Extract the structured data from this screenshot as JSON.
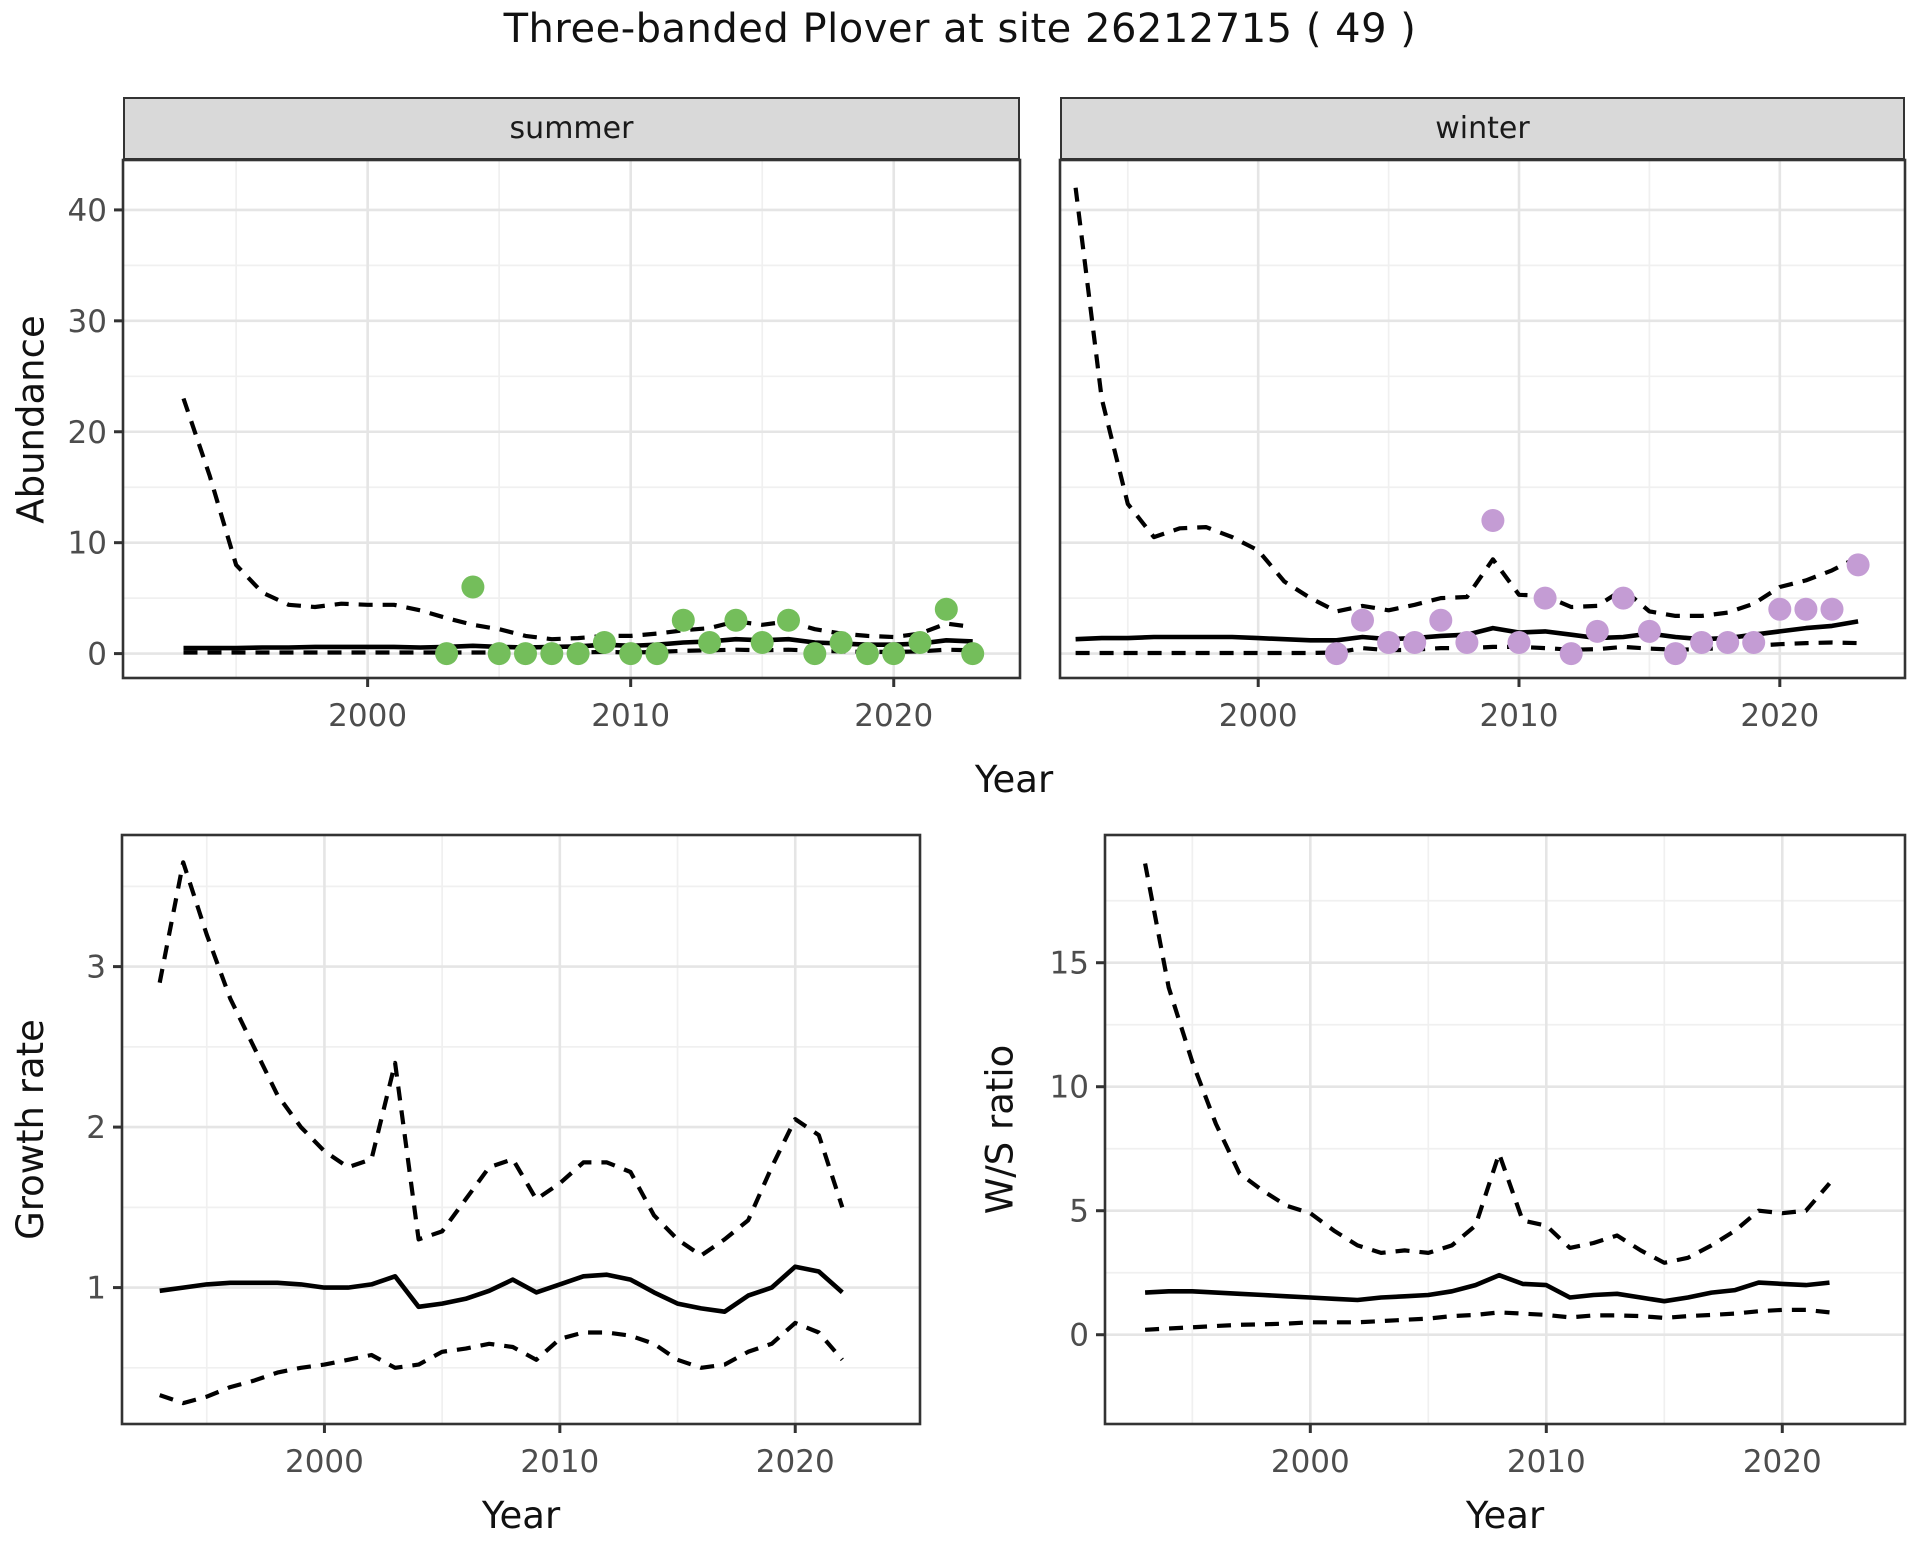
{
  "title": "Three-banded Plover at site 26212715 ( 49 )",
  "colors": {
    "summer_point": "#74be5b",
    "winter_point": "#c49cd4",
    "line": "#000000",
    "grid_major": "#e5e5e5",
    "grid_minor": "#f0f0f0",
    "strip_bg": "#d9d9d9",
    "panel_border": "#333333",
    "tick_text": "#4d4d4d"
  },
  "chart_data": [
    {
      "id": "abundance-summer",
      "type": "line",
      "facet": "summer",
      "xlabel": "Year",
      "ylabel": "Abundance",
      "x_start": 1993,
      "xlim": [
        1990.7,
        2024.8
      ],
      "ylim": [
        -2.2,
        44.5
      ],
      "x_ticks": [
        2000,
        2010,
        2020
      ],
      "x_minor": [
        1995,
        2005,
        2015
      ],
      "y_ticks": [
        0,
        10,
        20,
        30,
        40
      ],
      "y_minor": [
        5,
        15,
        25,
        35
      ],
      "show_y_labels": true,
      "grid": true,
      "legend": "none",
      "series": [
        {
          "name": "upper-ci",
          "style": "dashed",
          "values": [
            23,
            16,
            8,
            5.5,
            4.4,
            4.2,
            4.5,
            4.4,
            4.4,
            3.9,
            3.2,
            2.6,
            2.2,
            1.6,
            1.3,
            1.4,
            1.6,
            1.6,
            1.8,
            2.1,
            2.3,
            2.9,
            2.6,
            2.9,
            2.2,
            1.8,
            1.6,
            1.5,
            1.8,
            2.7,
            2.4
          ]
        },
        {
          "name": "mean",
          "style": "solid",
          "values": [
            0.5,
            0.5,
            0.5,
            0.55,
            0.55,
            0.6,
            0.6,
            0.6,
            0.6,
            0.55,
            0.6,
            0.7,
            0.6,
            0.55,
            0.6,
            0.65,
            0.8,
            0.7,
            0.8,
            1.0,
            1.1,
            1.3,
            1.2,
            1.3,
            1.0,
            0.9,
            0.8,
            0.8,
            0.9,
            1.2,
            1.1
          ]
        },
        {
          "name": "lower-ci",
          "style": "dashed",
          "values": [
            0.1,
            0.1,
            0.1,
            0.1,
            0.1,
            0.1,
            0.1,
            0.1,
            0.1,
            0.1,
            0.1,
            0.1,
            0.1,
            0.1,
            0.1,
            0.1,
            0.15,
            0.1,
            0.15,
            0.25,
            0.3,
            0.35,
            0.3,
            0.35,
            0.25,
            0.2,
            0.15,
            0.15,
            0.2,
            0.35,
            0.3
          ]
        }
      ],
      "points": {
        "x_start": 2003,
        "color_key": "summer_point",
        "values": [
          0,
          6,
          0,
          0,
          0,
          0,
          1,
          0,
          0,
          3,
          1,
          3,
          1,
          3,
          0,
          1,
          0,
          0,
          1,
          4,
          0
        ]
      }
    },
    {
      "id": "abundance-winter",
      "type": "line",
      "facet": "winter",
      "xlabel": "Year",
      "ylabel": "Abundance",
      "x_start": 1993,
      "xlim": [
        1992.4,
        2024.8
      ],
      "ylim": [
        -2.2,
        44.5
      ],
      "x_ticks": [
        2000,
        2010,
        2020
      ],
      "x_minor": [
        1995,
        2005,
        2015
      ],
      "y_ticks": [
        0,
        10,
        20,
        30,
        40
      ],
      "y_minor": [
        5,
        15,
        25,
        35
      ],
      "show_y_labels": false,
      "grid": true,
      "legend": "none",
      "series": [
        {
          "name": "upper-ci",
          "style": "dashed",
          "values": [
            42,
            23,
            13.5,
            10.5,
            11.3,
            11.4,
            10.5,
            9.3,
            6.5,
            5.0,
            3.8,
            4.3,
            3.9,
            4.4,
            5.0,
            5.1,
            8.5,
            5.3,
            5.2,
            4.2,
            4.3,
            5.8,
            3.8,
            3.4,
            3.4,
            3.7,
            4.5,
            6.0,
            6.6,
            7.5,
            8.7
          ]
        },
        {
          "name": "mean",
          "style": "solid",
          "values": [
            1.3,
            1.4,
            1.4,
            1.5,
            1.5,
            1.5,
            1.5,
            1.4,
            1.3,
            1.2,
            1.2,
            1.5,
            1.3,
            1.4,
            1.6,
            1.7,
            2.3,
            1.9,
            2.0,
            1.7,
            1.4,
            1.5,
            1.8,
            1.5,
            1.3,
            1.4,
            1.7,
            2.0,
            2.3,
            2.5,
            2.9
          ]
        },
        {
          "name": "lower-ci",
          "style": "dashed",
          "values": [
            0.05,
            0.05,
            0.05,
            0.05,
            0.05,
            0.05,
            0.05,
            0.05,
            0.05,
            0.05,
            0.1,
            0.5,
            0.3,
            0.35,
            0.5,
            0.5,
            0.6,
            0.6,
            0.5,
            0.35,
            0.4,
            0.6,
            0.45,
            0.35,
            0.4,
            0.55,
            0.7,
            0.85,
            0.95,
            1.0,
            0.95
          ]
        }
      ],
      "points": {
        "x_start": 2003,
        "color_key": "winter_point",
        "values": [
          0,
          3,
          1,
          1,
          3,
          1,
          12,
          1,
          5,
          0,
          2,
          5,
          2,
          0,
          1,
          1,
          1,
          4,
          4,
          4,
          8
        ]
      }
    },
    {
      "id": "growth-rate",
      "type": "line",
      "facet": "",
      "xlabel": "Year",
      "ylabel": "Growth rate",
      "x_start": 1993,
      "xlim": [
        1991.4,
        2025.3
      ],
      "ylim": [
        0.15,
        3.82
      ],
      "x_ticks": [
        2000,
        2010,
        2020
      ],
      "x_minor": [
        1995,
        2005,
        2015
      ],
      "y_ticks": [
        1,
        2,
        3
      ],
      "y_minor": [
        0.5,
        1.5,
        2.5,
        3.5
      ],
      "show_y_labels": true,
      "grid": true,
      "legend": "none",
      "series": [
        {
          "name": "upper-ci",
          "style": "dashed",
          "values": [
            2.9,
            3.65,
            3.2,
            2.8,
            2.5,
            2.2,
            2.0,
            1.85,
            1.75,
            1.8,
            2.4,
            1.3,
            1.35,
            1.55,
            1.75,
            1.8,
            1.55,
            1.65,
            1.78,
            1.78,
            1.72,
            1.45,
            1.3,
            1.2,
            1.3,
            1.42,
            1.75,
            2.05,
            1.95,
            1.5
          ]
        },
        {
          "name": "mean",
          "style": "solid",
          "values": [
            0.98,
            1.0,
            1.02,
            1.03,
            1.03,
            1.03,
            1.02,
            1.0,
            1.0,
            1.02,
            1.07,
            0.88,
            0.9,
            0.93,
            0.98,
            1.05,
            0.97,
            1.02,
            1.07,
            1.08,
            1.05,
            0.97,
            0.9,
            0.87,
            0.85,
            0.95,
            1.0,
            1.13,
            1.1,
            0.97
          ]
        },
        {
          "name": "lower-ci",
          "style": "dashed",
          "values": [
            0.33,
            0.28,
            0.32,
            0.38,
            0.42,
            0.47,
            0.5,
            0.52,
            0.55,
            0.58,
            0.5,
            0.52,
            0.6,
            0.62,
            0.65,
            0.63,
            0.55,
            0.68,
            0.72,
            0.72,
            0.7,
            0.65,
            0.55,
            0.5,
            0.52,
            0.6,
            0.65,
            0.78,
            0.72,
            0.55
          ]
        }
      ],
      "points": null
    },
    {
      "id": "ws-ratio",
      "type": "line",
      "facet": "",
      "xlabel": "Year",
      "ylabel": "W/S ratio",
      "x_start": 1993,
      "xlim": [
        1991.3,
        2025.2
      ],
      "ylim": [
        -3.6,
        20.15
      ],
      "x_ticks": [
        2000,
        2010,
        2020
      ],
      "x_minor": [
        1995,
        2005,
        2015
      ],
      "y_ticks": [
        0,
        5,
        10,
        15
      ],
      "y_minor": [
        2.5,
        7.5,
        12.5,
        17.5
      ],
      "show_y_labels": true,
      "grid": true,
      "legend": "none",
      "series": [
        {
          "name": "upper-ci",
          "style": "dashed",
          "values": [
            19,
            14,
            11,
            8.5,
            6.5,
            5.8,
            5.2,
            4.9,
            4.2,
            3.6,
            3.3,
            3.4,
            3.3,
            3.6,
            4.4,
            7.3,
            4.6,
            4.4,
            3.5,
            3.7,
            4.0,
            3.4,
            2.9,
            3.1,
            3.6,
            4.2,
            5.0,
            4.9,
            5.0,
            6.1
          ]
        },
        {
          "name": "mean",
          "style": "solid",
          "values": [
            1.7,
            1.75,
            1.75,
            1.7,
            1.65,
            1.6,
            1.55,
            1.5,
            1.45,
            1.4,
            1.5,
            1.55,
            1.6,
            1.75,
            2.0,
            2.4,
            2.05,
            2.0,
            1.5,
            1.6,
            1.65,
            1.5,
            1.35,
            1.5,
            1.7,
            1.8,
            2.1,
            2.05,
            2.0,
            2.1
          ]
        },
        {
          "name": "lower-ci",
          "style": "dashed",
          "values": [
            0.2,
            0.25,
            0.3,
            0.35,
            0.4,
            0.42,
            0.45,
            0.5,
            0.5,
            0.5,
            0.55,
            0.6,
            0.65,
            0.75,
            0.8,
            0.9,
            0.85,
            0.8,
            0.7,
            0.78,
            0.78,
            0.75,
            0.68,
            0.75,
            0.8,
            0.85,
            0.95,
            1.0,
            1.0,
            0.9
          ]
        }
      ],
      "points": null
    }
  ]
}
